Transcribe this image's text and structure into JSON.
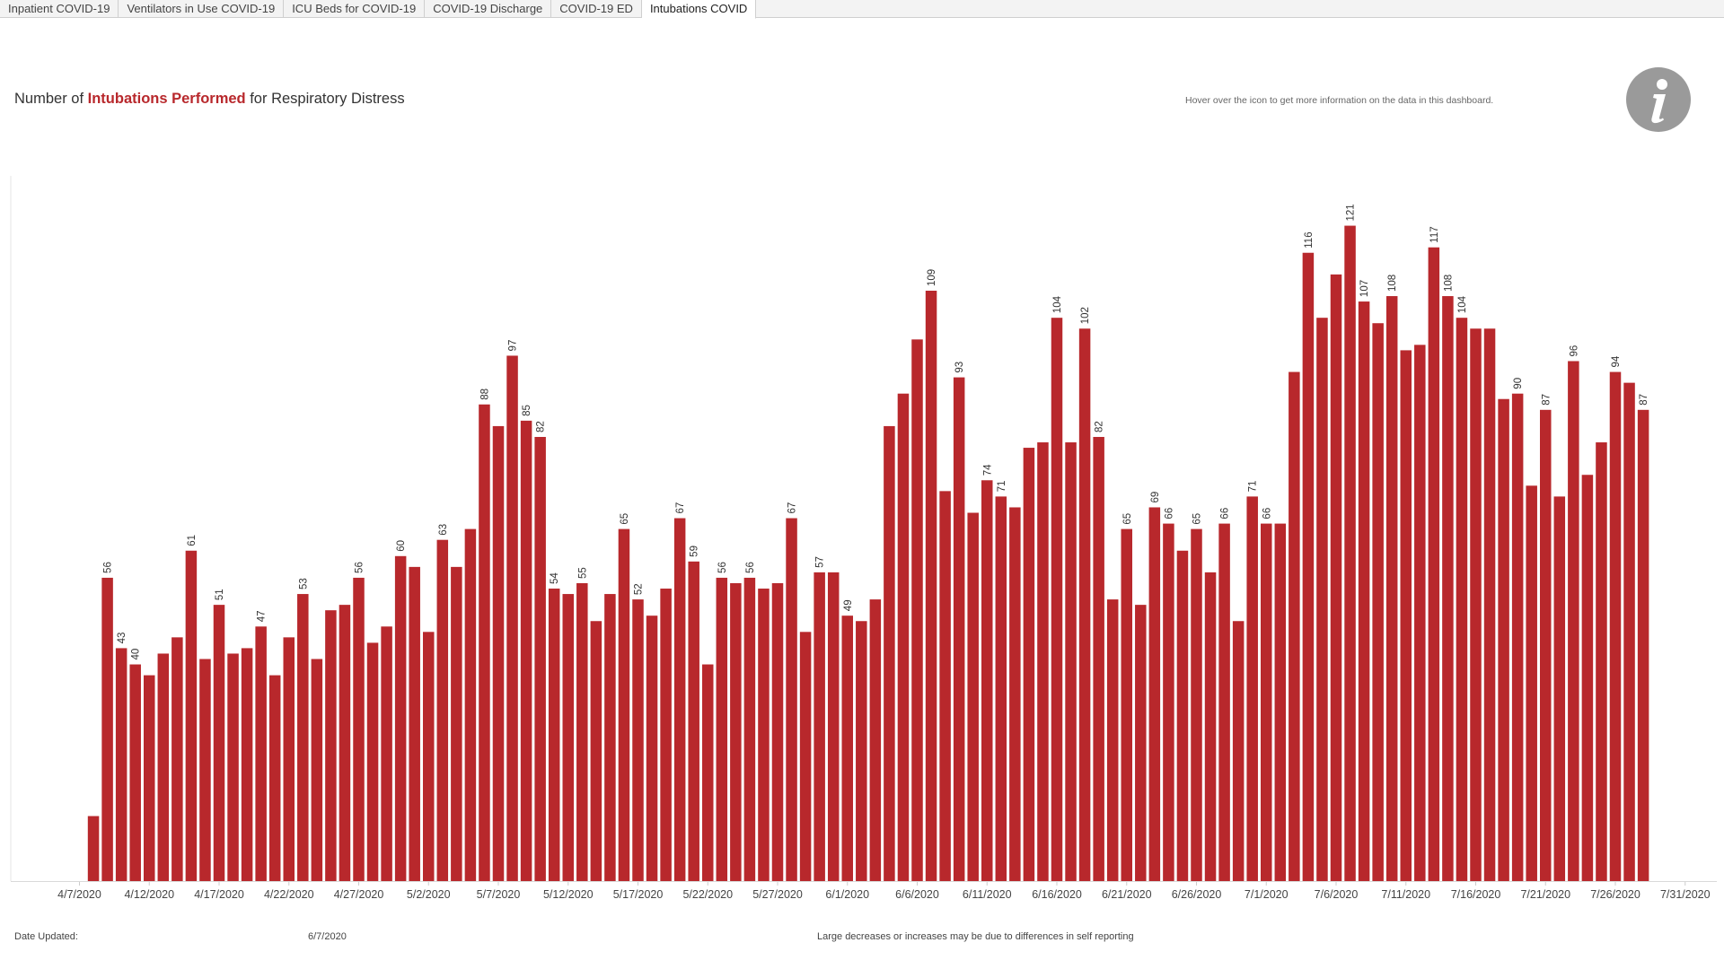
{
  "tabs": [
    {
      "label": "Inpatient COVID-19",
      "active": false
    },
    {
      "label": "Ventilators in Use COVID-19",
      "active": false
    },
    {
      "label": "ICU Beds for COVID-19",
      "active": false
    },
    {
      "label": "COVID-19 Discharge",
      "active": false
    },
    {
      "label": "COVID-19 ED",
      "active": false
    },
    {
      "label": "Intubations COVID",
      "active": true
    }
  ],
  "header": {
    "title_prefix": "Number of ",
    "title_highlight": "Intubations Performed",
    "title_suffix": " for Respiratory Distress",
    "hover_hint": "Hover over the icon to get more information on the data in this dashboard.",
    "info_icon": "info-icon"
  },
  "footer": {
    "date_updated_label": "Date Updated:",
    "date_updated_value": "6/7/2020",
    "note": "Large decreases or increases may be due to differences in self reporting"
  },
  "colors": {
    "bar": "#b8282c",
    "highlight_text": "#b8282c",
    "info_circle": "#9a9a9a"
  },
  "chart_data": {
    "type": "bar",
    "start_date": "4/7/2020",
    "x_ticks": [
      "4/7/2020",
      "4/12/2020",
      "4/17/2020",
      "4/22/2020",
      "4/27/2020",
      "5/2/2020",
      "5/7/2020",
      "5/12/2020",
      "5/17/2020",
      "5/22/2020",
      "5/27/2020",
      "6/1/2020",
      "6/6/2020",
      "6/11/2020",
      "6/16/2020",
      "6/21/2020",
      "6/26/2020",
      "7/1/2020",
      "7/6/2020",
      "7/11/2020",
      "7/16/2020",
      "7/21/2020",
      "7/26/2020",
      "7/31/2020"
    ],
    "values": [
      12,
      56,
      43,
      40,
      38,
      42,
      45,
      61,
      41,
      51,
      42,
      43,
      47,
      38,
      45,
      53,
      41,
      50,
      51,
      56,
      44,
      47,
      60,
      58,
      46,
      63,
      58,
      65,
      88,
      84,
      97,
      85,
      82,
      54,
      53,
      55,
      48,
      53,
      65,
      52,
      49,
      54,
      67,
      59,
      40,
      56,
      55,
      56,
      54,
      55,
      67,
      46,
      57,
      57,
      49,
      48,
      52,
      84,
      90,
      100,
      109,
      72,
      93,
      68,
      74,
      71,
      69,
      80,
      81,
      104,
      81,
      102,
      82,
      52,
      65,
      51,
      69,
      66,
      61,
      65,
      57,
      66,
      48,
      71,
      66,
      66,
      94,
      116,
      104,
      112,
      121,
      107,
      103,
      108,
      98,
      99,
      117,
      108,
      104,
      102,
      102,
      89,
      90,
      73,
      87,
      71,
      96,
      75,
      81,
      94,
      92,
      87
    ],
    "labels": [
      null,
      "56",
      "43",
      "40",
      null,
      null,
      null,
      "61",
      null,
      "51",
      null,
      null,
      "47",
      null,
      null,
      "53",
      null,
      null,
      null,
      "56",
      null,
      null,
      "60",
      null,
      null,
      "63",
      null,
      null,
      "88",
      null,
      "97",
      "85",
      "82",
      "54",
      null,
      "55",
      null,
      null,
      "65",
      "52",
      null,
      null,
      "67",
      "59",
      null,
      "56",
      null,
      "56",
      null,
      null,
      "67",
      null,
      "57",
      null,
      "49",
      null,
      null,
      null,
      null,
      null,
      "109",
      null,
      "93",
      null,
      "74",
      "71",
      null,
      null,
      null,
      "104",
      null,
      "102",
      "82",
      null,
      "65",
      null,
      "69",
      "66",
      null,
      "65",
      null,
      "66",
      null,
      "71",
      "66",
      null,
      null,
      "116",
      null,
      null,
      "121",
      "107",
      null,
      "108",
      null,
      null,
      "117",
      "108",
      "104",
      null,
      null,
      null,
      "90",
      null,
      "87",
      null,
      "96",
      null,
      null,
      "94",
      null,
      "87"
    ],
    "ylim": [
      0,
      130
    ],
    "grid": false,
    "title": "Number of Intubations Performed for Respiratory Distress"
  }
}
